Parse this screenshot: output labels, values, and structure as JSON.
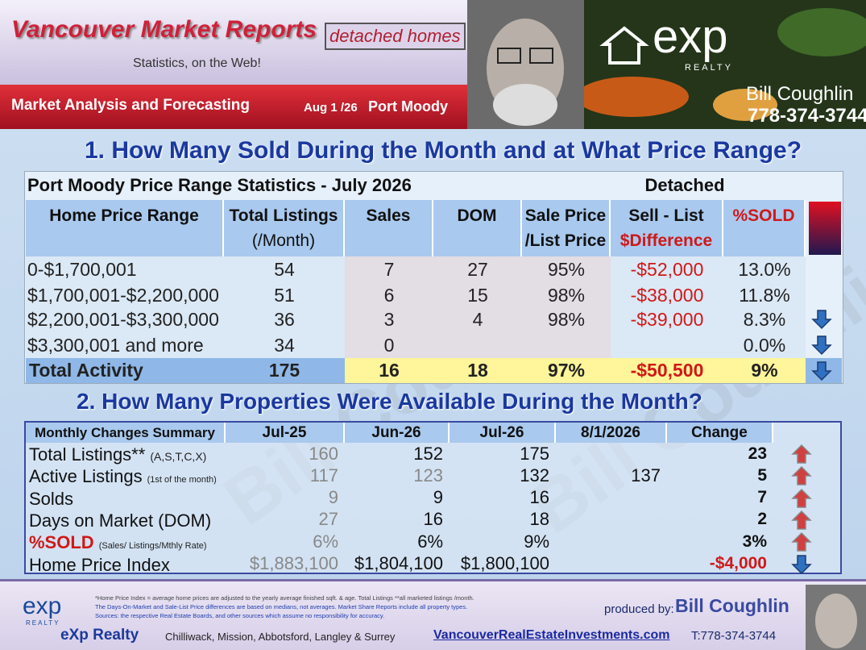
{
  "header": {
    "title": "Vancouver Market Reports",
    "subtitle": "Statistics, on the Web!",
    "badge": "detached homes",
    "tagline": "Market Analysis and Forecasting",
    "date": "Aug 1 /26",
    "area": "Port Moody",
    "logo": "exp",
    "logo_sub": "REALTY",
    "agent": "Bill Coughlin",
    "phone": "778-374-3744"
  },
  "watermark": "Bill Coughlin",
  "section1": {
    "heading": "1. How Many Sold During the Month and at What Price Range?",
    "table": {
      "title": "Port Moody Price Range Statistics  - July  2026",
      "type": "Detached",
      "headers": [
        [
          "Home Price Range"
        ],
        [
          "Total  Listings",
          "(/Month)"
        ],
        [
          "Sales"
        ],
        [
          "DOM"
        ],
        [
          "Sale Price",
          "/List Price"
        ],
        [
          "Sell - List",
          "$Difference"
        ],
        [
          "%SOLD"
        ]
      ],
      "rows": [
        [
          "0-$1,700,001",
          "54",
          "7",
          "27",
          "95%",
          "-$52,000",
          "13.0%"
        ],
        [
          "$1,700,001-$2,200,000",
          "51",
          "6",
          "15",
          "98%",
          "-$38,000",
          "11.8%"
        ],
        [
          "$2,200,001-$3,300,000",
          "36",
          "3",
          "4",
          "98%",
          "-$39,000",
          "8.3%"
        ],
        [
          "$3,300,001 and more",
          "34",
          "0",
          null,
          null,
          null,
          "0.0%"
        ]
      ],
      "total": [
        "Total Activity",
        "175",
        "16",
        "18",
        "97%",
        "-$50,500",
        "9%"
      ]
    }
  },
  "section2": {
    "heading": "2. How Many Properties Were Available During the Month?",
    "table": {
      "headers": [
        "Monthly Changes Summary",
        "Jul-25",
        "Jun-26",
        "Jul-26",
        "8/1/2026",
        "Change"
      ],
      "rows": [
        {
          "label": "Total Listings**",
          "note": "(A,S,T,C,X)",
          "cells": [
            "160",
            "152",
            "175",
            null,
            "23"
          ]
        },
        {
          "label": "Active Listings",
          "note": "(1st of the month)",
          "cells": [
            "117",
            "123",
            "132",
            "137",
            "5"
          ]
        },
        {
          "label": "Solds",
          "note": null,
          "cells": [
            "9",
            "9",
            "16",
            null,
            "7"
          ]
        },
        {
          "label": "Days on Market (DOM)",
          "note": null,
          "cells": [
            "27",
            "16",
            "18",
            null,
            "2"
          ]
        },
        {
          "label": "%SOLD",
          "note": "(Sales/ Listings/Mthly Rate)",
          "cells": [
            "6%",
            "6%",
            "9%",
            null,
            "3%"
          ]
        },
        {
          "label": "Home Price Index",
          "note": null,
          "cells": [
            "$1,883,100",
            "$1,804,100",
            "$1,800,100",
            null,
            "-$4,000"
          ]
        }
      ]
    }
  },
  "footer": {
    "notes": [
      "*Home Price Index = average home prices are adjusted to the yearly average finished sqft. & age.  Total Listings **all marketed listings /month.",
      "The Days-On-Market and Sale-List Price differences are based on medians, not averages. Market Share Reports include all property types.",
      "Sources:  the respective Real Estate Boards, and other sources which assume no responsibility for accuracy."
    ],
    "produced_by": "produced by:",
    "name": "Bill Coughlin",
    "company": "eXp Realty",
    "areas": "Chilliwack, Mission, Abbotsford, Langley & Surrey",
    "website": "VancouverRealEstateInvestments.com",
    "phone": "T:778-374-3744",
    "logo": "exp",
    "logo_sub": "REALTY"
  }
}
